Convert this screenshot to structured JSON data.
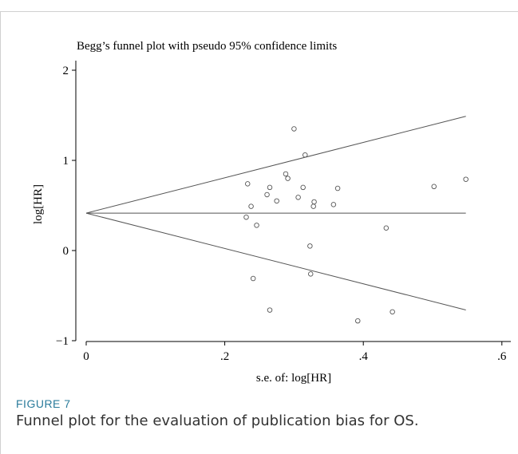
{
  "figure": {
    "label": "FIGURE 7",
    "caption": "Funnel plot for the evaluation of publication bias for OS."
  },
  "chart_data": {
    "type": "scatter",
    "title": "Begg’s funnel plot with pseudo 95% confidence limits",
    "xlabel": "s.e. of: log[HR]",
    "ylabel": "log[HR]",
    "xlim": [
      0,
      0.6
    ],
    "ylim": [
      -1,
      2
    ],
    "x_ticks": [
      0,
      0.2,
      0.4,
      0.6
    ],
    "x_tick_labels": [
      "0",
      ".2",
      ".4",
      ".6"
    ],
    "y_ticks": [
      -1,
      0,
      1,
      2
    ],
    "y_tick_labels": [
      "−1",
      "0",
      "1",
      "2"
    ],
    "grid": false,
    "pooled_estimate": 0.415,
    "funnel_x_max": 0.548,
    "points": [
      {
        "x": 0.3,
        "y": 1.35
      },
      {
        "x": 0.316,
        "y": 1.06
      },
      {
        "x": 0.288,
        "y": 0.85
      },
      {
        "x": 0.291,
        "y": 0.8
      },
      {
        "x": 0.233,
        "y": 0.74
      },
      {
        "x": 0.265,
        "y": 0.7
      },
      {
        "x": 0.313,
        "y": 0.7
      },
      {
        "x": 0.363,
        "y": 0.69
      },
      {
        "x": 0.502,
        "y": 0.71
      },
      {
        "x": 0.548,
        "y": 0.79
      },
      {
        "x": 0.261,
        "y": 0.62
      },
      {
        "x": 0.306,
        "y": 0.59
      },
      {
        "x": 0.275,
        "y": 0.55
      },
      {
        "x": 0.329,
        "y": 0.54
      },
      {
        "x": 0.238,
        "y": 0.49
      },
      {
        "x": 0.328,
        "y": 0.49
      },
      {
        "x": 0.357,
        "y": 0.51
      },
      {
        "x": 0.231,
        "y": 0.37
      },
      {
        "x": 0.246,
        "y": 0.28
      },
      {
        "x": 0.433,
        "y": 0.25
      },
      {
        "x": 0.323,
        "y": 0.05
      },
      {
        "x": 0.324,
        "y": -0.26
      },
      {
        "x": 0.241,
        "y": -0.31
      },
      {
        "x": 0.265,
        "y": -0.66
      },
      {
        "x": 0.442,
        "y": -0.68
      },
      {
        "x": 0.392,
        "y": -0.78
      }
    ]
  }
}
